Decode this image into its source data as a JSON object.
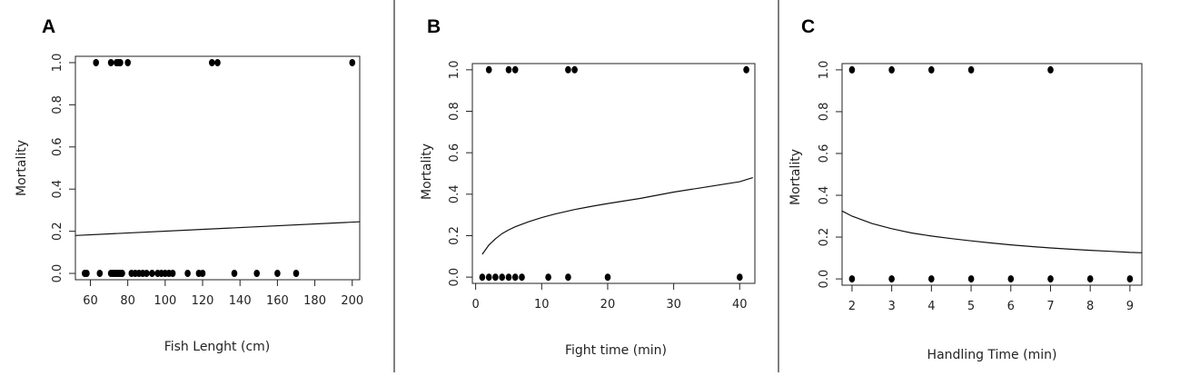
{
  "chart_data": [
    {
      "panel": "A",
      "type": "scatter",
      "xlabel": "Fish Lenght (cm)",
      "ylabel": "Mortality",
      "xlim": [
        52,
        204
      ],
      "ylim": [
        -0.03,
        1.03
      ],
      "xticks": [
        60,
        80,
        100,
        120,
        140,
        160,
        180,
        200
      ],
      "yticks": [
        0.0,
        0.2,
        0.4,
        0.6,
        0.8,
        1.0
      ],
      "ytick_labels": [
        "0.0",
        "0.2",
        "0.4",
        "0.6",
        "0.8",
        "1.0"
      ],
      "points": [
        [
          63,
          1
        ],
        [
          71,
          1
        ],
        [
          74,
          1
        ],
        [
          75,
          1
        ],
        [
          76,
          1
        ],
        [
          80,
          1
        ],
        [
          125,
          1
        ],
        [
          128,
          1
        ],
        [
          200,
          1
        ],
        [
          57,
          0
        ],
        [
          58,
          0
        ],
        [
          65,
          0
        ],
        [
          71,
          0
        ],
        [
          72,
          0
        ],
        [
          73,
          0
        ],
        [
          74,
          0
        ],
        [
          75,
          0
        ],
        [
          76,
          0
        ],
        [
          77,
          0
        ],
        [
          82,
          0
        ],
        [
          84,
          0
        ],
        [
          86,
          0
        ],
        [
          88,
          0
        ],
        [
          90,
          0
        ],
        [
          93,
          0
        ],
        [
          96,
          0
        ],
        [
          98,
          0
        ],
        [
          100,
          0
        ],
        [
          102,
          0
        ],
        [
          104,
          0
        ],
        [
          112,
          0
        ],
        [
          118,
          0
        ],
        [
          120,
          0
        ],
        [
          137,
          0
        ],
        [
          149,
          0
        ],
        [
          160,
          0
        ],
        [
          170,
          0
        ]
      ],
      "fit": {
        "x": [
          52,
          204
        ],
        "y": [
          0.18,
          0.245
        ]
      }
    },
    {
      "panel": "B",
      "type": "scatter",
      "xlabel": "Fight time (min)",
      "ylabel": "Mortality",
      "xlim": [
        -0.5,
        42.3
      ],
      "ylim": [
        -0.03,
        1.03
      ],
      "xticks": [
        0,
        10,
        20,
        30,
        40
      ],
      "yticks": [
        0.0,
        0.2,
        0.4,
        0.6,
        0.8,
        1.0
      ],
      "ytick_labels": [
        "0.0",
        "0.2",
        "0.4",
        "0.6",
        "0.8",
        "1.0"
      ],
      "points": [
        [
          2,
          1
        ],
        [
          5,
          1
        ],
        [
          6,
          1
        ],
        [
          14,
          1
        ],
        [
          15,
          1
        ],
        [
          41,
          1
        ],
        [
          1,
          0
        ],
        [
          2,
          0
        ],
        [
          3,
          0
        ],
        [
          4,
          0
        ],
        [
          5,
          0
        ],
        [
          6,
          0
        ],
        [
          7,
          0
        ],
        [
          11,
          0
        ],
        [
          14,
          0
        ],
        [
          20,
          0
        ],
        [
          40,
          0
        ]
      ],
      "fit": {
        "x": [
          1,
          2,
          3,
          4,
          5,
          6,
          8,
          10,
          12,
          15,
          18,
          20,
          25,
          30,
          35,
          40,
          42
        ],
        "y": [
          0.11,
          0.155,
          0.185,
          0.21,
          0.228,
          0.243,
          0.267,
          0.287,
          0.304,
          0.326,
          0.344,
          0.355,
          0.38,
          0.41,
          0.435,
          0.46,
          0.48
        ]
      }
    },
    {
      "panel": "C",
      "type": "scatter",
      "xlabel": "Handling Time (min)",
      "ylabel": "Mortality",
      "xlim": [
        1.75,
        9.3
      ],
      "ylim": [
        -0.03,
        1.03
      ],
      "xticks": [
        2,
        3,
        4,
        5,
        6,
        7,
        8,
        9
      ],
      "yticks": [
        0.0,
        0.2,
        0.4,
        0.6,
        0.8,
        1.0
      ],
      "ytick_labels": [
        "0.0",
        "0.2",
        "0.4",
        "0.6",
        "0.8",
        "1.0"
      ],
      "points": [
        [
          2,
          1
        ],
        [
          3,
          1
        ],
        [
          4,
          1
        ],
        [
          5,
          1
        ],
        [
          7,
          1
        ],
        [
          2,
          0
        ],
        [
          3,
          0
        ],
        [
          4,
          0
        ],
        [
          5,
          0
        ],
        [
          6,
          0
        ],
        [
          7,
          0
        ],
        [
          8,
          0
        ],
        [
          9,
          0
        ]
      ],
      "fit": {
        "x": [
          1.75,
          2,
          2.5,
          3,
          3.5,
          4,
          4.5,
          5,
          5.5,
          6,
          6.5,
          7,
          7.5,
          8,
          8.5,
          9,
          9.3
        ],
        "y": [
          0.325,
          0.3,
          0.265,
          0.24,
          0.22,
          0.205,
          0.193,
          0.182,
          0.172,
          0.163,
          0.155,
          0.148,
          0.142,
          0.137,
          0.132,
          0.127,
          0.125
        ]
      }
    }
  ]
}
